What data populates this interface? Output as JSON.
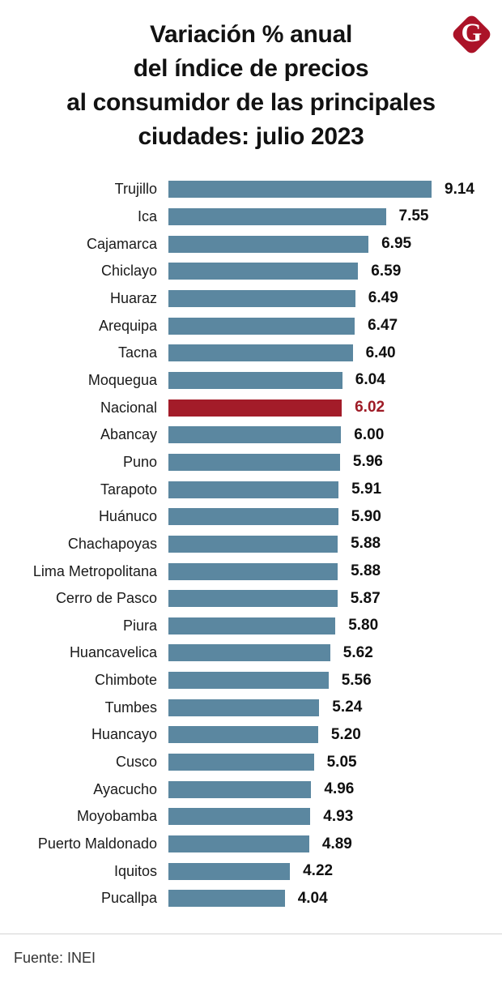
{
  "header": {
    "title": "Variación % anual del índice de precios al consumidor de las principales ciudades: julio 2023",
    "title_lines": [
      "Variación % anual",
      "del índice de precios",
      "al consumidor de las principales",
      "ciudades: julio 2023"
    ],
    "logo_letter": "G"
  },
  "colors": {
    "bar": "#5b87a0",
    "highlight_bar": "#a31c29",
    "value_text": "#0f0f0f",
    "highlight_value_text": "#9e1b26",
    "logo_red": "#ab1328",
    "label_text": "#1a1a1a"
  },
  "footer": {
    "source": "Fuente: INEI"
  },
  "chart_data": {
    "type": "bar",
    "orientation": "horizontal",
    "title": "Variación % anual del índice de precios al consumidor de las principales ciudades: julio 2023",
    "categories": [
      "Trujillo",
      "Ica",
      "Cajamarca",
      "Chiclayo",
      "Huaraz",
      "Arequipa",
      "Tacna",
      "Moquegua",
      "Nacional",
      "Abancay",
      "Puno",
      "Tarapoto",
      "Huánuco",
      "Chachapoyas",
      "Lima Metropolitana",
      "Cerro de Pasco",
      "Piura",
      "Huancavelica",
      "Chimbote",
      "Tumbes",
      "Huancayo",
      "Cusco",
      "Ayacucho",
      "Moyobamba",
      "Puerto Maldonado",
      "Iquitos",
      "Pucallpa"
    ],
    "values": [
      9.14,
      7.55,
      6.95,
      6.59,
      6.49,
      6.47,
      6.4,
      6.04,
      6.02,
      6.0,
      5.96,
      5.91,
      5.9,
      5.88,
      5.88,
      5.87,
      5.8,
      5.62,
      5.56,
      5.24,
      5.2,
      5.05,
      4.96,
      4.93,
      4.89,
      4.22,
      4.04
    ],
    "value_labels": [
      "9.14",
      "7.55",
      "6.95",
      "6.59",
      "6.49",
      "6.47",
      "6.40",
      "6.04",
      "6.02",
      "6.00",
      "5.96",
      "5.91",
      "5.90",
      "5.88",
      "5.88",
      "5.87",
      "5.80",
      "5.62",
      "5.56",
      "5.24",
      "5.20",
      "5.05",
      "4.96",
      "4.93",
      "4.89",
      "4.22",
      "4.04"
    ],
    "highlight_category": "Nacional",
    "xlim": [
      0,
      9.14
    ],
    "grid": false,
    "legend": false,
    "value_labels_position": "end-of-bar",
    "source": "Fuente: INEI"
  }
}
